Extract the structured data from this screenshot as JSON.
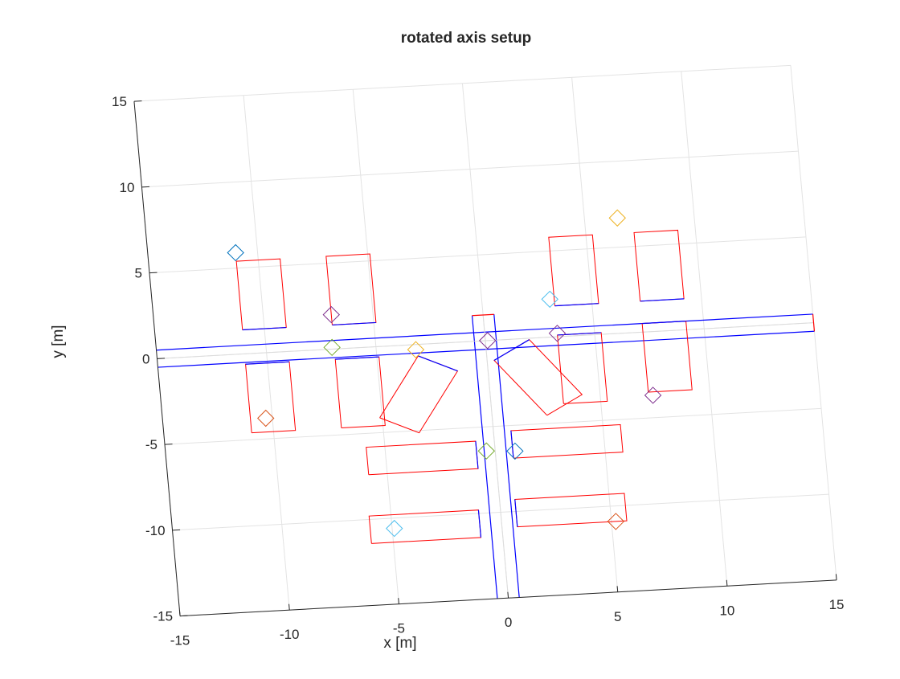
{
  "chart_data": {
    "type": "scatter",
    "title": "rotated axis setup",
    "xlabel": "x [m]",
    "ylabel": "y [m]",
    "xlim": [
      -15,
      15
    ],
    "ylim": [
      -15,
      15
    ],
    "rotation_deg": 4,
    "grid": true,
    "xticks": [
      -15,
      -10,
      -5,
      0,
      5,
      10,
      15
    ],
    "yticks": [
      -15,
      -10,
      -5,
      0,
      5,
      10,
      15
    ],
    "xtick_labels": [
      "-15",
      "-10",
      "-5",
      "0",
      "5",
      "10",
      "15"
    ],
    "ytick_labels": [
      "-15",
      "-10",
      "-5",
      "0",
      "5",
      "10",
      "15"
    ],
    "road_lines": [
      {
        "x": [
          -15,
          15
        ],
        "y": [
          0.5,
          0.5
        ]
      },
      {
        "x": [
          -15,
          15
        ],
        "y": [
          -0.5,
          -0.5
        ]
      },
      {
        "x": [
          -0.5,
          -0.5
        ],
        "y": [
          -15,
          1.5
        ]
      },
      {
        "x": [
          0.5,
          0.5
        ],
        "y": [
          -15,
          1.5
        ]
      },
      {
        "x": [
          -15,
          15
        ],
        "y": [
          0.0,
          0.0
        ]
      },
      {
        "x": [
          0.0,
          0.0
        ],
        "y": [
          -15,
          1.5
        ]
      }
    ],
    "road_colors": {
      "edge": "#0000ff",
      "center": "#dcdcdc",
      "end": "#ff0000"
    },
    "parking_spots": [
      {
        "cx": -10,
        "cy": 3.4,
        "w": 2,
        "h": 4,
        "angle": 0
      },
      {
        "cx": -5.9,
        "cy": 3.4,
        "w": 2,
        "h": 4,
        "angle": 0
      },
      {
        "cx": 4.3,
        "cy": 3.8,
        "w": 2,
        "h": 4,
        "angle": 0
      },
      {
        "cx": 8.2,
        "cy": 3.8,
        "w": 2,
        "h": 4,
        "angle": 0
      },
      {
        "cx": -10,
        "cy": -2.6,
        "w": 2,
        "h": 4,
        "angle": 0
      },
      {
        "cx": -5.9,
        "cy": -2.6,
        "w": 2,
        "h": 4,
        "angle": 0
      },
      {
        "cx": 4.3,
        "cy": -1.9,
        "w": 2,
        "h": 4,
        "angle": 0
      },
      {
        "cx": 8.2,
        "cy": -1.5,
        "w": 2,
        "h": 4,
        "angle": 0
      },
      {
        "cx": -3.25,
        "cy": -2.9,
        "w": 2,
        "h": 4,
        "angle": -30
      },
      {
        "cx": 2.25,
        "cy": -2.3,
        "w": 2,
        "h": 4,
        "angle": 33
      },
      {
        "cx": -3.35,
        "cy": -6.6,
        "w": 5,
        "h": 1.6,
        "angle": 0
      },
      {
        "cx": 3.3,
        "cy": -6.1,
        "w": 5,
        "h": 1.6,
        "angle": 0
      },
      {
        "cx": -3.5,
        "cy": -10.6,
        "w": 5,
        "h": 1.6,
        "angle": 0
      },
      {
        "cx": 3.2,
        "cy": -10.1,
        "w": 5,
        "h": 1.6,
        "angle": 0
      }
    ],
    "spot_colors": {
      "outline": "#ff0000",
      "entry": "#0000ff"
    },
    "markers": [
      {
        "x": -11,
        "y": 5.9,
        "color": "#0072bd"
      },
      {
        "x": -6.9,
        "y": 2.0,
        "color": "#7e2f8e"
      },
      {
        "x": -7.0,
        "y": 0.1,
        "color": "#77ac30"
      },
      {
        "x": -10.3,
        "y": -3.8,
        "color": "#d95319"
      },
      {
        "x": -3.2,
        "y": -0.3,
        "color": "#edb120"
      },
      {
        "x": -0.4,
        "y": -6.4,
        "color": "#77ac30"
      },
      {
        "x": -4.9,
        "y": -10.6,
        "color": "#4dbeee"
      },
      {
        "x": 0.1,
        "y": 0.0,
        "color": "#7e2f8e"
      },
      {
        "x": 0.9,
        "y": -6.5,
        "color": "#0072bd"
      },
      {
        "x": 3.1,
        "y": 2.2,
        "color": "#4dbeee"
      },
      {
        "x": 3.3,
        "y": 0.2,
        "color": "#7e2f8e"
      },
      {
        "x": 6.5,
        "y": 6.7,
        "color": "#edb120"
      },
      {
        "x": 7.4,
        "y": -3.7,
        "color": "#7e2f8e"
      },
      {
        "x": 5.2,
        "y": -10.9,
        "color": "#d95319"
      }
    ]
  }
}
